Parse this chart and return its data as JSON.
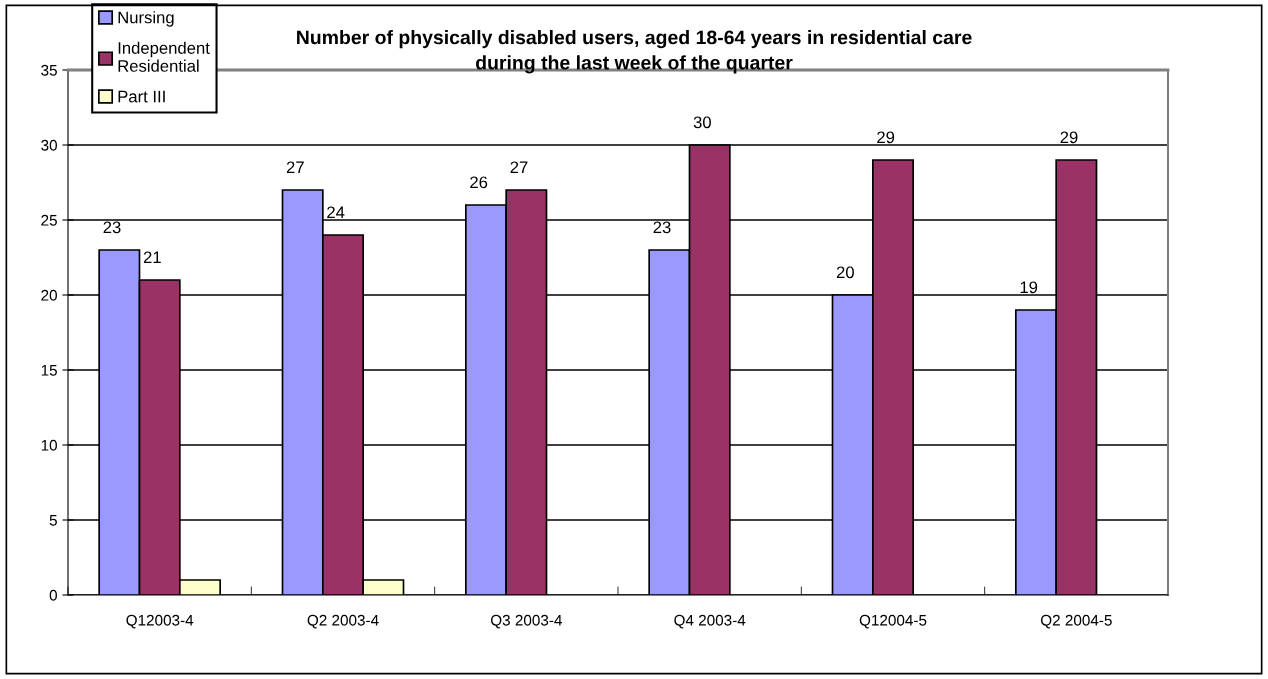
{
  "chart_data": {
    "type": "bar",
    "title": "Number of physically disabled users, aged 18-64 years in residential care\nduring the last week of the quarter",
    "categories": [
      "Q12003-4",
      "Q2 2003-4",
      "Q3 2003-4",
      "Q4 2003-4",
      "Q12004-5",
      "Q2 2004-5"
    ],
    "series": [
      {
        "name": "Nursing",
        "color": "#9999ff",
        "values": [
          23,
          27,
          26,
          23,
          20,
          19
        ],
        "value_labels": [
          "23",
          "27",
          "26",
          "23",
          "20",
          "19"
        ]
      },
      {
        "name": "Independent\nResidential",
        "color": "#993366",
        "values": [
          21,
          24,
          27,
          30,
          29,
          29
        ],
        "value_labels": [
          "21",
          "24",
          "27",
          "30",
          "29",
          "29"
        ]
      },
      {
        "name": "Part III",
        "color": "#ffffcc",
        "values": [
          1,
          1,
          null,
          null,
          null,
          null
        ]
      }
    ],
    "ylim": [
      0,
      35
    ],
    "yticks": [
      0,
      5,
      10,
      15,
      20,
      25,
      30,
      35
    ],
    "grid": "y",
    "legend": "top left"
  }
}
